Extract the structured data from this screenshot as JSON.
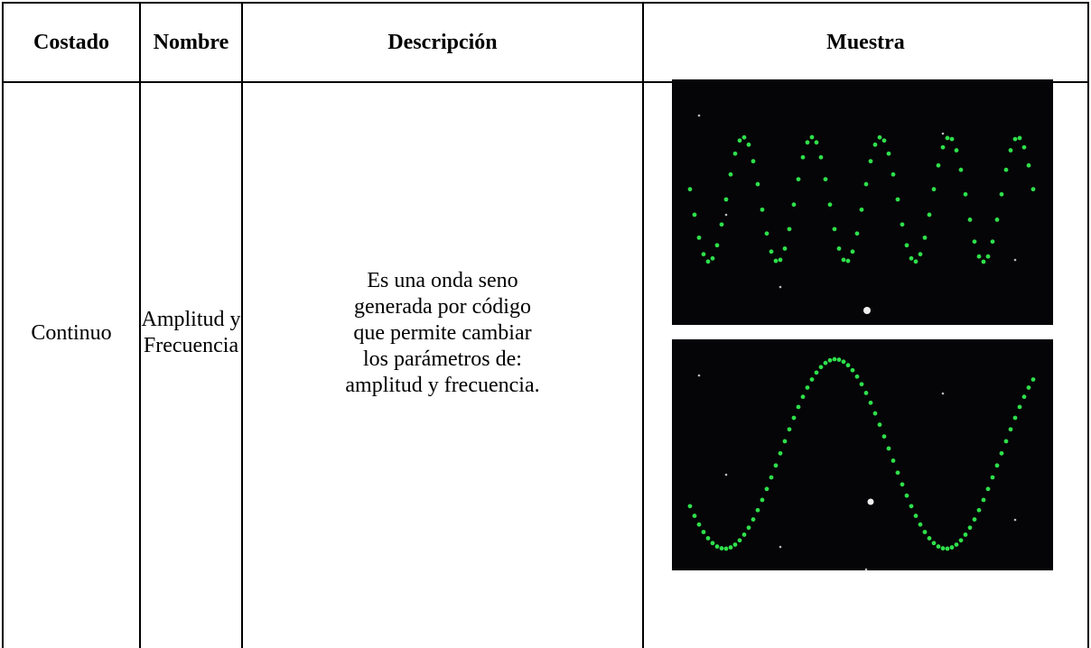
{
  "table": {
    "header": [
      "Costado",
      "Nombre",
      "Descripción",
      "Muestra"
    ],
    "rows": [
      {
        "costado": "Continuo",
        "nombre": [
          "Amplitud y",
          "Frecuencia"
        ],
        "descripcion": [
          "Es una onda seno",
          "generada por código",
          "que permite cambiar",
          "los parámetros de:",
          "amplitud y frecuencia."
        ]
      }
    ]
  }
}
